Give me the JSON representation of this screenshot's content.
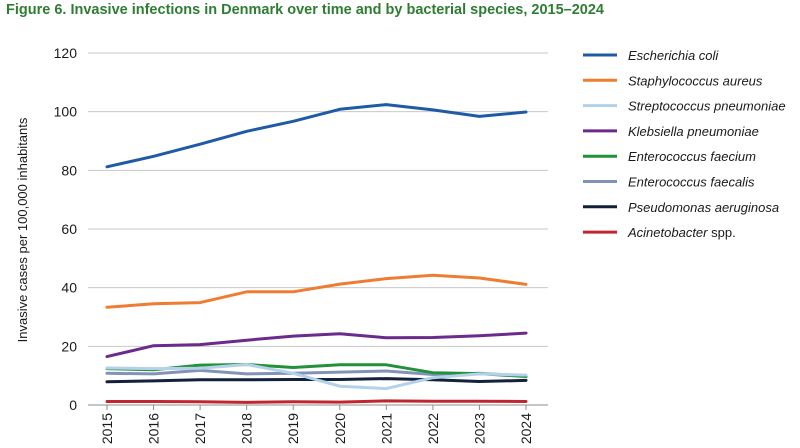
{
  "chart_data": {
    "type": "line",
    "title": "Figure 6. Invasive infections in Denmark over time and by bacterial species, 2015–2024",
    "xlabel": "",
    "ylabel": "Invasive cases per 100,000 inhabitants",
    "ylim": [
      0,
      120
    ],
    "yticks": [
      0,
      20,
      40,
      60,
      80,
      100,
      120
    ],
    "grid": true,
    "legend_position": "right",
    "x": [
      "2015",
      "2016",
      "2017",
      "2018",
      "2019",
      "2020",
      "2021",
      "2022",
      "2023",
      "2024"
    ],
    "series": [
      {
        "name": "Escherichia coli",
        "name_suffix": "",
        "color": "#1f5aa6",
        "values": [
          81.2,
          84.8,
          88.9,
          93.3,
          96.7,
          100.8,
          102.4,
          100.6,
          98.4,
          99.9
        ]
      },
      {
        "name": "Staphylococcus aureus",
        "name_suffix": "",
        "color": "#ee7d31",
        "values": [
          33.3,
          34.5,
          34.9,
          38.6,
          38.6,
          41.2,
          43.1,
          44.2,
          43.3,
          41.1
        ]
      },
      {
        "name": "Streptococcus pneumoniae",
        "name_suffix": "",
        "color": "#b3d2e9",
        "values": [
          12.6,
          12.4,
          12.5,
          13.8,
          10.8,
          6.4,
          5.6,
          9.3,
          10.6,
          10.2
        ]
      },
      {
        "name": "Klebsiella pneumoniae",
        "name_suffix": "",
        "color": "#6c2a8c",
        "values": [
          16.5,
          20.2,
          20.6,
          22.1,
          23.5,
          24.3,
          22.9,
          23.0,
          23.6,
          24.5
        ]
      },
      {
        "name": "Enterococcus faecium",
        "name_suffix": "",
        "color": "#21913a",
        "values": [
          12.4,
          12.0,
          13.6,
          13.8,
          12.8,
          13.7,
          13.7,
          11.0,
          10.7,
          9.7
        ]
      },
      {
        "name": "Enterococcus faecalis",
        "name_suffix": "",
        "color": "#8592b8",
        "values": [
          10.8,
          10.6,
          11.8,
          10.6,
          10.8,
          11.2,
          11.6,
          10.4,
          10.8,
          9.9
        ]
      },
      {
        "name": "Pseudomonas aeruginosa",
        "name_suffix": "",
        "color": "#14213d",
        "values": [
          7.9,
          8.2,
          8.6,
          8.6,
          8.7,
          8.7,
          9.0,
          8.6,
          8.0,
          8.4
        ]
      },
      {
        "name": "Acinetobacter",
        "name_suffix": " spp.",
        "color": "#c0262d",
        "values": [
          1.2,
          1.2,
          1.1,
          0.9,
          1.1,
          1.0,
          1.4,
          1.3,
          1.3,
          1.2
        ]
      }
    ]
  }
}
